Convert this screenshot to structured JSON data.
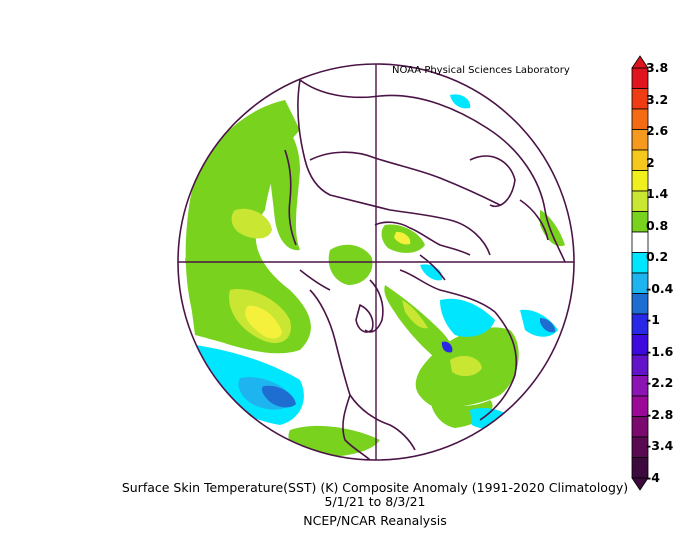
{
  "credit": "NOAA Physical Sciences Laboratory",
  "title": "Surface Skin Temperature(SST) (K) Composite Anomaly (1991-2020 Climatology)",
  "date_range": "5/1/21  to 8/3/21",
  "source": "NCEP/NCAR Reanalysis",
  "colorbar": {
    "labels": [
      "3.8",
      "3.2",
      "2.6",
      "2",
      "1.4",
      "0.8",
      "0.2",
      "-0.4",
      "-1",
      "-1.6",
      "-2.2",
      "-2.8",
      "-3.4",
      "-4"
    ],
    "colors": [
      "#e0141e",
      "#f03c14",
      "#f56a14",
      "#f59a1e",
      "#f5c81e",
      "#f0f01e",
      "#c8e632",
      "#78d21e",
      "#ffffff",
      "#00e6ff",
      "#1eb4f0",
      "#1e6ed2",
      "#2828e6",
      "#3c0adc",
      "#6414c8",
      "#8c14b4",
      "#9a0a96",
      "#7a0a6e",
      "#5a0a50",
      "#3c0a3c"
    ],
    "min_color": "#3c0a3c",
    "max_color": "#dc141e"
  },
  "map": {
    "projection": "north-polar-stereographic",
    "coastline_color": "#4b1446",
    "colors": {
      "green": "#78d21e",
      "yellowgreen": "#c8e632",
      "yellow": "#f5f03c",
      "lightblue": "#00e6ff",
      "midblue": "#1eb4f0",
      "darkblue": "#1e6ed2",
      "deepblue": "#2828e6"
    }
  }
}
